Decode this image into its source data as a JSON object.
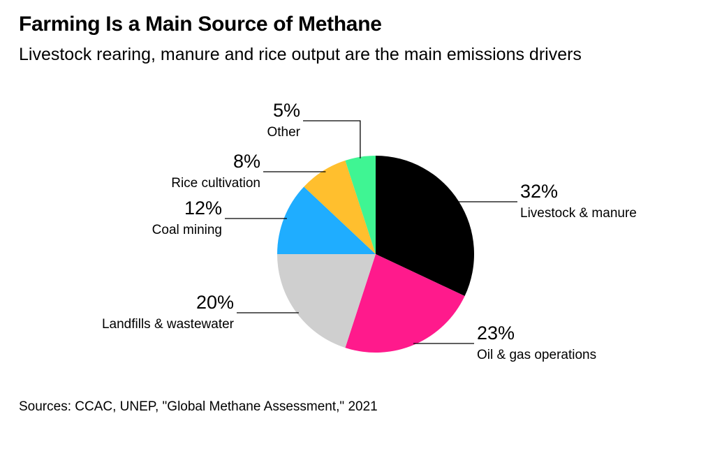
{
  "header": {
    "title": "Farming Is a Main Source of Methane",
    "subtitle": "Livestock rearing, manure and rice output are the main emissions drivers"
  },
  "footer": {
    "source": "Sources: CCAC, UNEP, \"Global Methane Assessment,\" 2021"
  },
  "chart_data": {
    "type": "pie",
    "title": "Farming Is a Main Source of Methane",
    "subtitle": "Livestock rearing, manure and rice output are the main emissions drivers",
    "start": "12 o'clock",
    "direction": "clockwise",
    "slices": [
      {
        "label": "Livestock & manure",
        "value": 32,
        "value_label": "32%",
        "color": "#000000"
      },
      {
        "label": "Oil & gas operations",
        "value": 23,
        "value_label": "23%",
        "color": "#ff1a8c"
      },
      {
        "label": "Landfills & wastewater",
        "value": 20,
        "value_label": "20%",
        "color": "#cfcfcf"
      },
      {
        "label": "Coal mining",
        "value": 12,
        "value_label": "12%",
        "color": "#1fadff"
      },
      {
        "label": "Rice cultivation",
        "value": 8,
        "value_label": "8%",
        "color": "#ffbf2e"
      },
      {
        "label": "Other",
        "value": 5,
        "value_label": "5%",
        "color": "#3ff593"
      }
    ]
  }
}
